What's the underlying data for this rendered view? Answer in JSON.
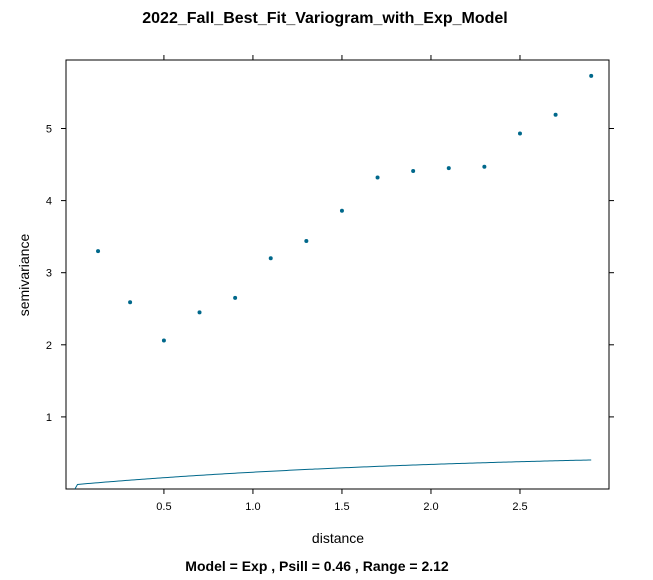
{
  "chart_data": {
    "type": "scatter",
    "title": "2022_Fall_Best_Fit_Variogram_with_Exp_Model",
    "subtitle": "Model = Exp , Psill = 0.46 , Range = 2.12",
    "xlabel": "distance",
    "ylabel": "semivariance",
    "xlim": [
      -0.05,
      3.0
    ],
    "ylim": [
      0,
      5.95
    ],
    "x_ticks": [
      0.5,
      1.0,
      1.5,
      2.0,
      2.5
    ],
    "x_tick_labels": [
      "0.5",
      "1.0",
      "1.5",
      "2.0",
      "2.5"
    ],
    "y_ticks": [
      1,
      2,
      3,
      4,
      5
    ],
    "y_tick_labels": [
      "1",
      "2",
      "3",
      "4",
      "5"
    ],
    "grid": false,
    "point_color": "#00688b",
    "line_color": "#00688b",
    "points": {
      "x": [
        0.13,
        0.31,
        0.5,
        0.7,
        0.9,
        1.1,
        1.3,
        1.5,
        1.7,
        1.9,
        2.1,
        2.3,
        2.5,
        2.7,
        2.9
      ],
      "y": [
        3.3,
        2.59,
        2.06,
        2.45,
        2.65,
        3.2,
        3.44,
        3.86,
        4.32,
        4.41,
        4.45,
        4.47,
        4.93,
        5.19,
        5.73
      ]
    },
    "model": {
      "name": "Exp",
      "nugget": 0.06,
      "psill": 0.46,
      "range": 2.12,
      "x_end": 2.9
    }
  }
}
